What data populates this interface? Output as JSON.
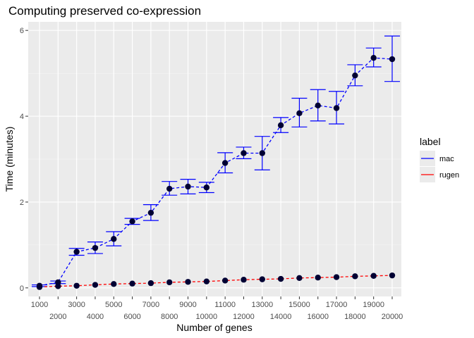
{
  "chart_data": {
    "type": "line",
    "title": "Computing preserved co-expression",
    "xlabel": "Number of genes",
    "ylabel": "Time (minutes)",
    "x": [
      1000,
      2000,
      3000,
      4000,
      5000,
      6000,
      7000,
      8000,
      9000,
      10000,
      11000,
      12000,
      13000,
      14000,
      15000,
      16000,
      17000,
      18000,
      19000,
      20000
    ],
    "x_tick_labels": [
      "1000",
      "2000",
      "3000",
      "4000",
      "5000",
      "6000",
      "7000",
      "8000",
      "9000",
      "10000",
      "11000",
      "12000",
      "13000",
      "14000",
      "15000",
      "16000",
      "17000",
      "18000",
      "19000",
      "20000"
    ],
    "y_ticks": [
      0,
      2,
      4,
      6
    ],
    "ylim": [
      -0.2,
      6.2
    ],
    "grid": true,
    "legend_title": "label",
    "legend_position": "right",
    "series": [
      {
        "name": "mac",
        "color": "#0000ff",
        "values": [
          0.05,
          0.13,
          0.84,
          0.93,
          1.14,
          1.55,
          1.75,
          2.31,
          2.36,
          2.34,
          2.91,
          3.14,
          3.14,
          3.79,
          4.07,
          4.25,
          4.19,
          4.95,
          5.36,
          5.33
        ],
        "lower": [
          0.03,
          0.1,
          0.76,
          0.8,
          0.98,
          1.48,
          1.57,
          2.16,
          2.19,
          2.22,
          2.68,
          3.01,
          2.75,
          3.62,
          3.75,
          3.89,
          3.82,
          4.71,
          5.15,
          4.81
        ],
        "upper": [
          0.07,
          0.16,
          0.92,
          1.07,
          1.31,
          1.62,
          1.94,
          2.48,
          2.53,
          2.46,
          3.15,
          3.28,
          3.53,
          3.97,
          4.42,
          4.62,
          4.58,
          5.2,
          5.59,
          5.87
        ]
      },
      {
        "name": "rugen",
        "color": "#ff0000",
        "values": [
          0.02,
          0.04,
          0.05,
          0.07,
          0.09,
          0.1,
          0.11,
          0.13,
          0.14,
          0.15,
          0.17,
          0.19,
          0.2,
          0.21,
          0.23,
          0.24,
          0.25,
          0.27,
          0.28,
          0.29
        ]
      }
    ]
  },
  "colors": {
    "panel_bg": "#ebebeb",
    "grid_major": "#ffffff",
    "point": "#000033"
  }
}
